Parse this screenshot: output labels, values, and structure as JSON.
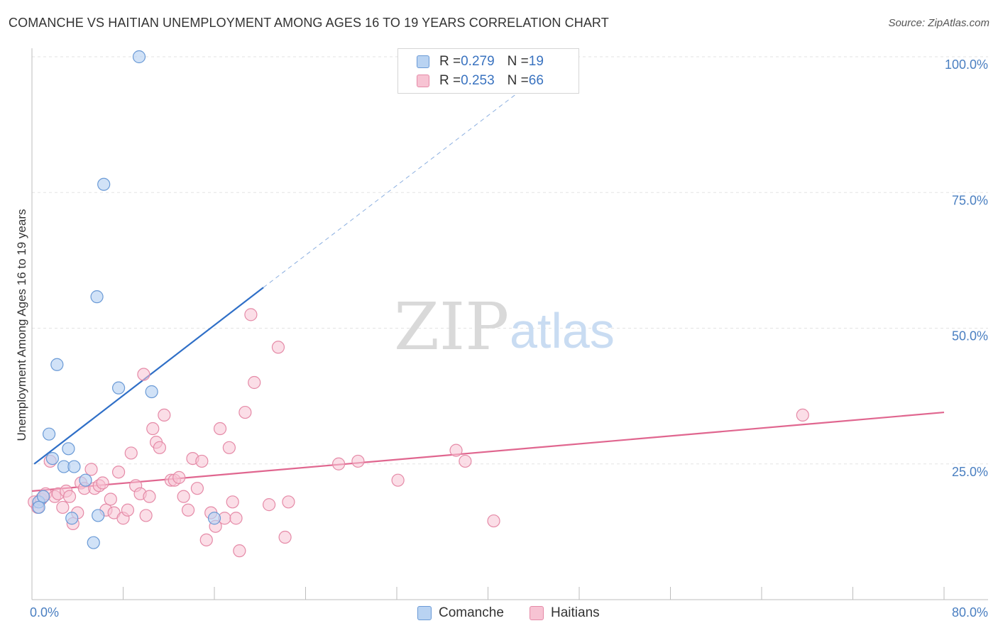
{
  "title": "COMANCHE VS HAITIAN UNEMPLOYMENT AMONG AGES 16 TO 19 YEARS CORRELATION CHART",
  "source": "Source: ZipAtlas.com",
  "watermark": {
    "zip": "ZIP",
    "atlas": "atlas"
  },
  "colors": {
    "comanche_fill": "#b9d3f2",
    "comanche_stroke": "#6a9ad6",
    "comanche_line": "#2f6fc7",
    "haitians_fill": "#f7c3d3",
    "haitians_stroke": "#e58aa7",
    "haitians_line": "#e0668f",
    "grid": "#e3e3e3",
    "axis_text": "#4a7fc1"
  },
  "legend": {
    "rows": [
      {
        "r_label": "R = ",
        "r_value": "0.279",
        "n_label": "N = ",
        "n_value": "19"
      },
      {
        "r_label": "R = ",
        "r_value": "0.253",
        "n_label": "N = ",
        "n_value": "66"
      }
    ]
  },
  "bottom_legend": {
    "series1": "Comanche",
    "series2": "Haitians"
  },
  "chart_data": {
    "type": "scatter",
    "title": "COMANCHE VS HAITIAN UNEMPLOYMENT AMONG AGES 16 TO 19 YEARS CORRELATION CHART",
    "xlabel": "",
    "ylabel": "Unemployment Among Ages 16 to 19 years",
    "xlim": [
      0,
      80
    ],
    "ylim": [
      0,
      100
    ],
    "x_tick_labels": [
      "0.0%",
      "80.0%"
    ],
    "y_ticks": [
      25,
      50,
      75,
      100
    ],
    "y_tick_labels": [
      "25.0%",
      "50.0%",
      "75.0%",
      "100.0%"
    ],
    "grid": true,
    "series": [
      {
        "name": "Comanche",
        "points": [
          [
            9.4,
            100.0
          ],
          [
            6.3,
            76.5
          ],
          [
            5.7,
            55.8
          ],
          [
            2.2,
            43.3
          ],
          [
            7.6,
            39.0
          ],
          [
            10.5,
            38.3
          ],
          [
            1.5,
            30.5
          ],
          [
            3.2,
            27.8
          ],
          [
            1.8,
            26.0
          ],
          [
            2.8,
            24.5
          ],
          [
            3.7,
            24.5
          ],
          [
            4.7,
            22.0
          ],
          [
            0.6,
            18.0
          ],
          [
            1.0,
            19.0
          ],
          [
            0.6,
            17.0
          ],
          [
            3.5,
            15.0
          ],
          [
            5.8,
            15.5
          ],
          [
            5.4,
            10.5
          ],
          [
            16.0,
            15.0
          ]
        ],
        "trend": {
          "x_start": 0.2,
          "y_start": 25.0,
          "x_solid_end": 20.3,
          "y_solid_end": 57.5,
          "x_dash_end": 45.5,
          "y_dash_end": 98.0
        }
      },
      {
        "name": "Haitians",
        "points": [
          [
            0.2,
            18.0
          ],
          [
            0.5,
            17.0
          ],
          [
            0.8,
            18.5
          ],
          [
            1.0,
            19.0
          ],
          [
            1.2,
            19.5
          ],
          [
            1.6,
            25.5
          ],
          [
            2.0,
            19.0
          ],
          [
            2.3,
            19.5
          ],
          [
            2.7,
            17.0
          ],
          [
            3.0,
            20.0
          ],
          [
            3.3,
            19.0
          ],
          [
            3.6,
            14.0
          ],
          [
            4.0,
            16.0
          ],
          [
            4.3,
            21.5
          ],
          [
            4.6,
            20.5
          ],
          [
            5.2,
            24.0
          ],
          [
            5.5,
            20.5
          ],
          [
            5.9,
            21.0
          ],
          [
            6.2,
            21.5
          ],
          [
            6.5,
            16.5
          ],
          [
            6.9,
            18.5
          ],
          [
            7.2,
            16.0
          ],
          [
            7.6,
            23.5
          ],
          [
            8.0,
            15.0
          ],
          [
            8.4,
            16.5
          ],
          [
            8.7,
            27.0
          ],
          [
            9.1,
            21.0
          ],
          [
            9.5,
            19.5
          ],
          [
            9.8,
            41.5
          ],
          [
            10.0,
            15.5
          ],
          [
            10.3,
            19.0
          ],
          [
            10.6,
            31.5
          ],
          [
            10.9,
            29.0
          ],
          [
            11.2,
            28.0
          ],
          [
            11.6,
            34.0
          ],
          [
            12.2,
            22.0
          ],
          [
            12.5,
            22.0
          ],
          [
            12.9,
            22.5
          ],
          [
            13.3,
            19.0
          ],
          [
            13.7,
            16.5
          ],
          [
            14.1,
            26.0
          ],
          [
            14.5,
            20.5
          ],
          [
            14.9,
            25.5
          ],
          [
            15.3,
            11.0
          ],
          [
            15.7,
            16.0
          ],
          [
            16.1,
            13.5
          ],
          [
            16.5,
            31.5
          ],
          [
            16.9,
            15.0
          ],
          [
            17.3,
            28.0
          ],
          [
            17.6,
            18.0
          ],
          [
            17.9,
            15.0
          ],
          [
            18.2,
            9.0
          ],
          [
            18.7,
            34.5
          ],
          [
            19.2,
            52.5
          ],
          [
            19.5,
            40.0
          ],
          [
            20.8,
            17.5
          ],
          [
            21.6,
            46.5
          ],
          [
            22.2,
            11.5
          ],
          [
            22.5,
            18.0
          ],
          [
            26.9,
            25.0
          ],
          [
            28.6,
            25.5
          ],
          [
            32.1,
            22.0
          ],
          [
            37.2,
            27.5
          ],
          [
            38.0,
            25.5
          ],
          [
            40.5,
            14.5
          ],
          [
            67.6,
            34.0
          ]
        ],
        "trend": {
          "x_start": 0.0,
          "y_start": 20.0,
          "x_end": 80.0,
          "y_end": 34.5
        }
      }
    ]
  }
}
